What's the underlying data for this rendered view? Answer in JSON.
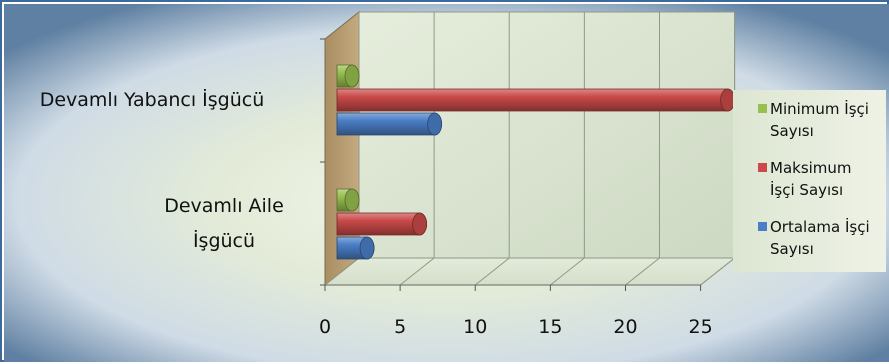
{
  "chart_data": {
    "type": "bar",
    "orientation": "horizontal",
    "style": "3d-cylinder",
    "categories": [
      "Devamlı Aile İşgücü",
      "Devamlı Yabancı İşgücü"
    ],
    "category_lines": [
      [
        "Devamlı Aile",
        "İşgücü"
      ],
      [
        "Devamlı Yabancı İşgücü"
      ]
    ],
    "series": [
      {
        "name": "Ortalama İşçi Sayısı",
        "legend_lines": [
          "Ortalama İşçi",
          "Sayısı"
        ],
        "values": [
          2,
          6.5
        ],
        "color": "#4a7ec6"
      },
      {
        "name": "Maksimum İşçi Sayısı",
        "legend_lines": [
          "Maksimum",
          "İşçi Sayısı"
        ],
        "values": [
          5.5,
          26
        ],
        "color": "#c94a48"
      },
      {
        "name": "Minimum İşçi Sayısı",
        "legend_lines": [
          "Minimum İşçi",
          "Sayısı"
        ],
        "values": [
          1,
          1
        ],
        "color": "#98bf4f"
      }
    ],
    "xlim": [
      0,
      25
    ],
    "ticks": [
      "0",
      "5",
      "10",
      "15",
      "20",
      "25"
    ],
    "grid": true,
    "legend_position": "right",
    "title": "",
    "xlabel": "",
    "ylabel": ""
  }
}
